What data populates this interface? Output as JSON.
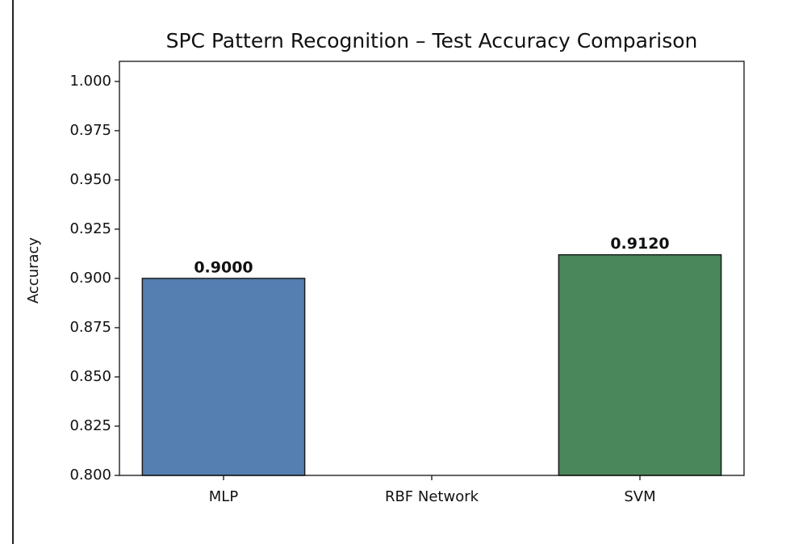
{
  "chart_data": {
    "type": "bar",
    "title": "SPC Pattern Recognition – Test Accuracy Comparison",
    "y_label": "Accuracy",
    "categories": [
      "MLP",
      "RBF Network",
      "SVM"
    ],
    "values": [
      0.9,
      null,
      0.912
    ],
    "value_labels": [
      "0.9000",
      null,
      "0.9120"
    ],
    "colors": [
      "#557fb0",
      "#7f7f7f",
      "#4a875b"
    ],
    "edge_color": "#1a1a1a",
    "ylim": [
      0.8,
      1.0102
    ],
    "yticks": [
      {
        "value": 0.8,
        "label": "0.800"
      },
      {
        "value": 0.825,
        "label": "0.825"
      },
      {
        "value": 0.85,
        "label": "0.850"
      },
      {
        "value": 0.875,
        "label": "0.875"
      },
      {
        "value": 0.9,
        "label": "0.900"
      },
      {
        "value": 0.925,
        "label": "0.925"
      },
      {
        "value": 0.95,
        "label": "0.950"
      },
      {
        "value": 0.975,
        "label": "0.975"
      },
      {
        "value": 1.0,
        "label": "1.000"
      }
    ],
    "grid": false
  }
}
